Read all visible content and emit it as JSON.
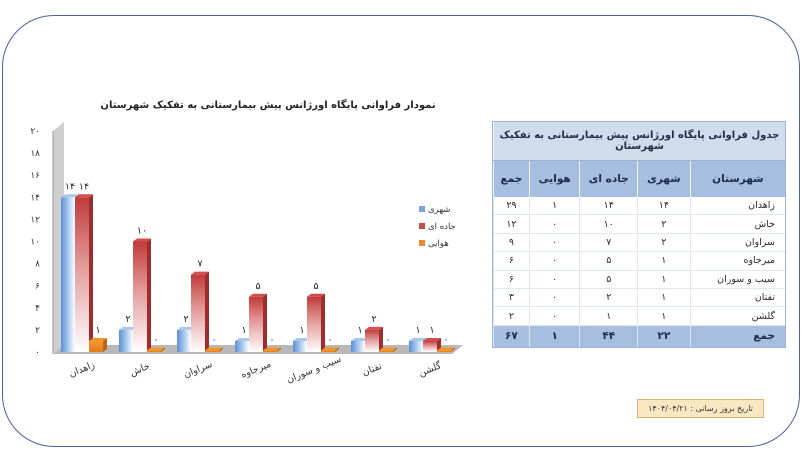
{
  "chart_data": {
    "type": "bar",
    "title": "نمودار فراوانی پایگاه اورژانس پیش بیمارستانی به تفکیک شهرستان",
    "categories": [
      "زاهدان",
      "خاش",
      "سراوان",
      "میرجاوه",
      "سیب و سوران",
      "تفتان",
      "گلشن"
    ],
    "series": [
      {
        "name": "شهری",
        "values": [
          14,
          2,
          2,
          1,
          1,
          1,
          1
        ],
        "labels": [
          "۱۴",
          "۲",
          "۲",
          "۱",
          "۱",
          "۱",
          "۱"
        ],
        "color": "#7aa3d8"
      },
      {
        "name": "جاده ای",
        "values": [
          14,
          10,
          7,
          5,
          5,
          2,
          1
        ],
        "labels": [
          "۱۴",
          "۱۰",
          "۷",
          "۵",
          "۵",
          "۲",
          "۱"
        ],
        "color": "#c94a4a"
      },
      {
        "name": "هوایی",
        "values": [
          1,
          0,
          0,
          0,
          0,
          0,
          0
        ],
        "labels": [
          "۱",
          "۰",
          "۰",
          "۰",
          "۰",
          "۰",
          "۰"
        ],
        "color": "#e8892b"
      }
    ],
    "ylim": [
      0,
      20
    ],
    "yticks": [
      0,
      2,
      4,
      6,
      8,
      10,
      12,
      14,
      16,
      18,
      20
    ],
    "ytick_labels": [
      "۰",
      "۲",
      "۴",
      "۶",
      "۸",
      "۱۰",
      "۱۲",
      "۱۴",
      "۱۶",
      "۱۸",
      "۲۰"
    ],
    "legend_position": "right",
    "grid": false
  },
  "table": {
    "title": "جدول فراوانی پایگاه اورژانس پیش بیمارستانی به تفکیک شهرستان",
    "headers": [
      "شهرستان",
      "شهری",
      "جاده ای",
      "هوایی",
      "جمع"
    ],
    "rows": [
      [
        "زاهدان",
        "۱۴",
        "۱۴",
        "۱",
        "۲۹"
      ],
      [
        "خاش",
        "۲",
        "۱۰",
        "۰",
        "۱۲"
      ],
      [
        "سراوان",
        "۲",
        "۷",
        "۰",
        "۹"
      ],
      [
        "میرجاوه",
        "۱",
        "۵",
        "۰",
        "۶"
      ],
      [
        "سیب و سوران",
        "۱",
        "۵",
        "۰",
        "۶"
      ],
      [
        "تفتان",
        "۱",
        "۲",
        "۰",
        "۳"
      ],
      [
        "گلشن",
        "۱",
        "۱",
        "۰",
        "۲"
      ]
    ],
    "total": [
      "جمع",
      "۲۲",
      "۴۴",
      "۱",
      "۶۷"
    ]
  },
  "update_date": "تاریخ بروز رسانی : ۱۴۰۴/۰۴/۲۱"
}
